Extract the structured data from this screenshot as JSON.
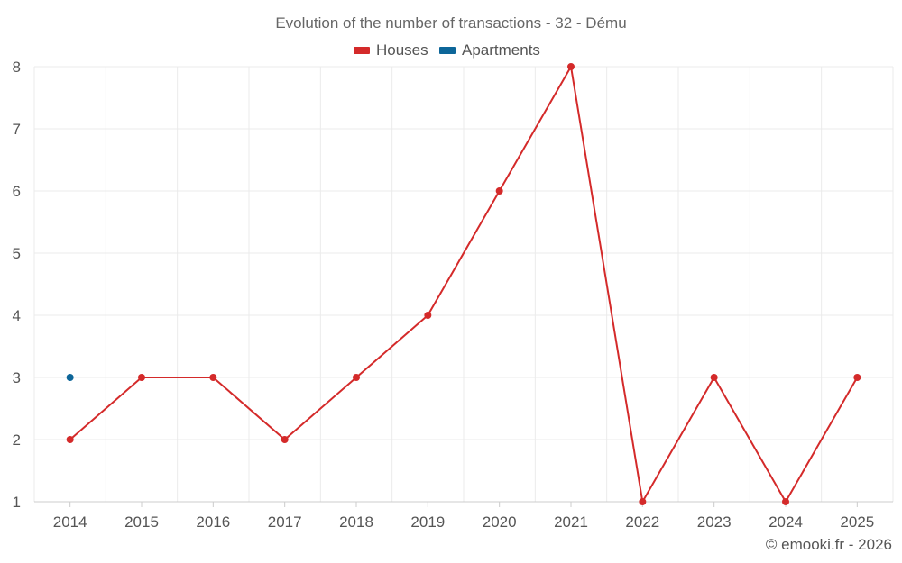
{
  "chart_data": {
    "type": "line",
    "title": "Evolution of the number of transactions - 32 - Dému",
    "categories": [
      "2014",
      "2015",
      "2016",
      "2017",
      "2018",
      "2019",
      "2020",
      "2021",
      "2022",
      "2023",
      "2024",
      "2025"
    ],
    "ylim": [
      1,
      8
    ],
    "yticks": [
      1,
      2,
      3,
      4,
      5,
      6,
      7,
      8
    ],
    "grid": true,
    "legend_position": "top-center",
    "series": [
      {
        "name": "Houses",
        "color": "#d42a2a",
        "values": [
          2,
          3,
          3,
          2,
          3,
          4,
          6,
          8,
          1,
          3,
          1,
          3
        ]
      },
      {
        "name": "Apartments",
        "color": "#0d6699",
        "values": [
          3,
          null,
          null,
          null,
          null,
          null,
          null,
          null,
          null,
          null,
          null,
          null
        ]
      }
    ]
  },
  "credit": "© emooki.fr - 2026"
}
